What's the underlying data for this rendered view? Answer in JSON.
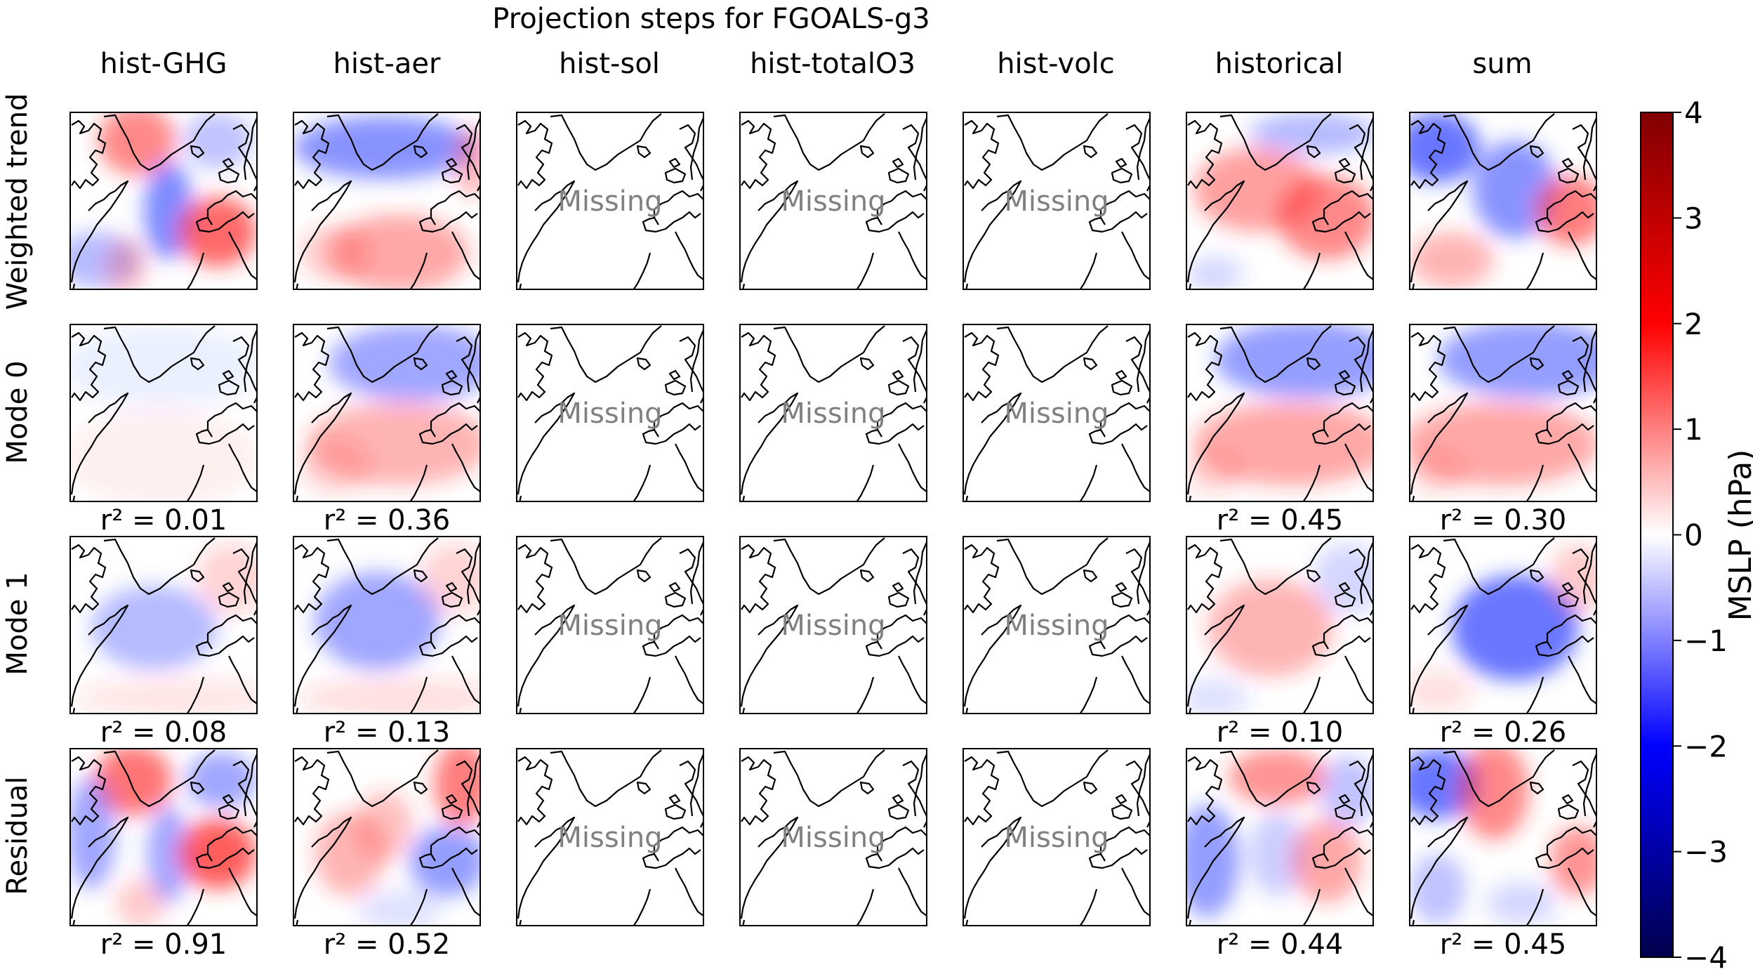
{
  "figure": {
    "title": "Projection steps for FGOALS-g3"
  },
  "chart_data": {
    "type": "heatmap",
    "title": "Projection steps for FGOALS-g3",
    "columns": [
      "hist-GHG",
      "hist-aer",
      "hist-sol",
      "hist-totalO3",
      "hist-volc",
      "historical",
      "sum"
    ],
    "rows": [
      "Weighted trend",
      "Mode 0",
      "Mode 1",
      "Residual"
    ],
    "missing_label": "Missing",
    "missing_columns": [
      "hist-sol",
      "hist-totalO3",
      "hist-volc"
    ],
    "r2_labels": {
      "Mode 0": [
        "r² = 0.01",
        "r² = 0.36",
        "",
        "",
        "",
        "r² = 0.45",
        "r² = 0.30"
      ],
      "Mode 1": [
        "r² = 0.08",
        "r² = 0.13",
        "",
        "",
        "",
        "r² = 0.10",
        "r² = 0.26"
      ],
      "Residual": [
        "r² = 0.91",
        "r² = 0.52",
        "",
        "",
        "",
        "r² = 0.44",
        "r² = 0.45"
      ]
    },
    "r2_values": {
      "Mode 0": [
        0.01,
        0.36,
        null,
        null,
        null,
        0.45,
        0.3
      ],
      "Mode 1": [
        0.08,
        0.13,
        null,
        null,
        null,
        0.1,
        0.26
      ],
      "Residual": [
        0.91,
        0.52,
        null,
        null,
        null,
        0.44,
        0.45
      ]
    },
    "colorbar": {
      "label": "MSLP (hPa)",
      "range": [
        -4,
        4
      ],
      "ticks": [
        4,
        3,
        2,
        1,
        0,
        -1,
        -2,
        -3,
        -4
      ],
      "tick_labels": [
        "4",
        "3",
        "2",
        "1",
        "0",
        "−1",
        "−2",
        "−3",
        "−4"
      ],
      "colormap": "seismic"
    },
    "colors": {
      "negative": "#2a3cff",
      "positive": "#ff2a2a",
      "neutral": "#ffffff",
      "missing_text": "#808080"
    }
  }
}
